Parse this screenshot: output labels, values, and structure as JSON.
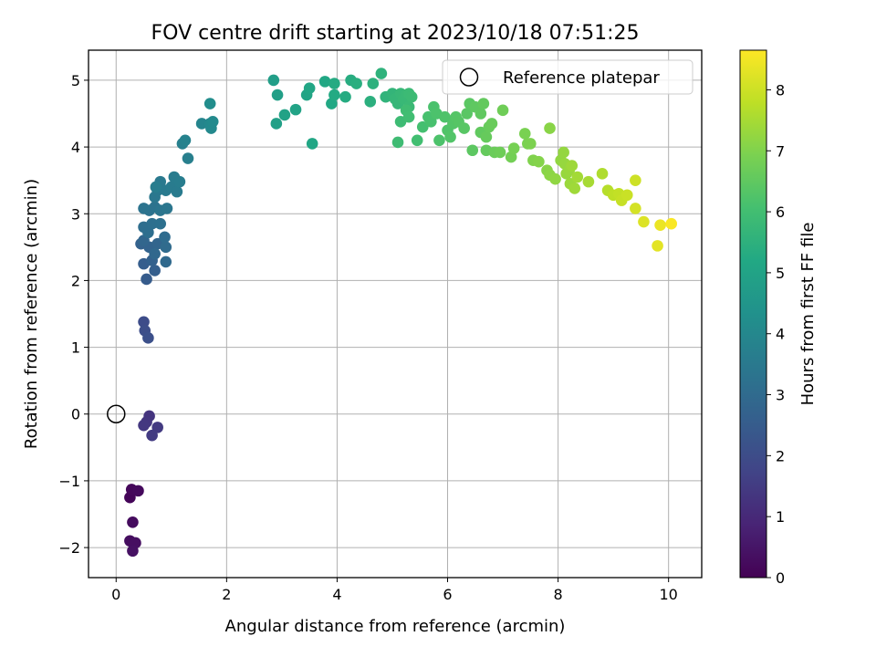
{
  "chart_data": {
    "type": "scatter",
    "title": "FOV centre drift starting at 2023/10/18 07:51:25",
    "xlabel": "Angular distance from reference (arcmin)",
    "ylabel": "Rotation from reference (arcmin)",
    "xlim": [
      -0.5,
      10.6
    ],
    "ylim": [
      -2.45,
      5.45
    ],
    "xticks": [
      0,
      2,
      4,
      6,
      8,
      10
    ],
    "yticks": [
      -2,
      -1,
      0,
      1,
      2,
      3,
      4,
      5
    ],
    "xtick_labels": [
      "0",
      "2",
      "4",
      "6",
      "8",
      "10"
    ],
    "ytick_labels": [
      "−2",
      "−1",
      "0",
      "1",
      "2",
      "3",
      "4",
      "5"
    ],
    "grid": true,
    "colormap": "viridis",
    "colorbar": {
      "label": "Hours from first FF file",
      "range": [
        0,
        8.65
      ],
      "ticks": [
        0,
        1,
        2,
        3,
        4,
        5,
        6,
        7,
        8
      ],
      "tick_labels": [
        "0",
        "1",
        "2",
        "3",
        "4",
        "5",
        "6",
        "7",
        "8"
      ]
    },
    "legend": {
      "position": "top-right",
      "entries": [
        "Reference platepar"
      ]
    },
    "reference_point": {
      "x": 0,
      "y": 0
    },
    "points": [
      {
        "x": 0.25,
        "y": -1.25,
        "c": 0.1
      },
      {
        "x": 0.28,
        "y": -1.13,
        "c": 0.15
      },
      {
        "x": 0.4,
        "y": -1.15,
        "c": 0.2
      },
      {
        "x": 0.3,
        "y": -1.62,
        "c": 0.25
      },
      {
        "x": 0.25,
        "y": -1.9,
        "c": 0.3
      },
      {
        "x": 0.35,
        "y": -1.93,
        "c": 0.35
      },
      {
        "x": 0.3,
        "y": -2.05,
        "c": 0.4
      },
      {
        "x": 0.6,
        "y": -0.03,
        "c": 1.3
      },
      {
        "x": 0.55,
        "y": -0.12,
        "c": 1.35
      },
      {
        "x": 0.5,
        "y": -0.17,
        "c": 1.4
      },
      {
        "x": 0.75,
        "y": -0.2,
        "c": 1.45
      },
      {
        "x": 0.65,
        "y": -0.32,
        "c": 1.5
      },
      {
        "x": 0.5,
        "y": 1.38,
        "c": 2.0
      },
      {
        "x": 0.52,
        "y": 1.25,
        "c": 2.05
      },
      {
        "x": 0.58,
        "y": 1.14,
        "c": 2.1
      },
      {
        "x": 0.55,
        "y": 2.02,
        "c": 2.5
      },
      {
        "x": 0.5,
        "y": 2.25,
        "c": 2.55
      },
      {
        "x": 0.7,
        "y": 2.15,
        "c": 2.6
      },
      {
        "x": 0.65,
        "y": 2.3,
        "c": 2.65
      },
      {
        "x": 0.45,
        "y": 2.55,
        "c": 2.7
      },
      {
        "x": 0.6,
        "y": 2.5,
        "c": 2.75
      },
      {
        "x": 0.75,
        "y": 2.55,
        "c": 2.8
      },
      {
        "x": 0.5,
        "y": 2.6,
        "c": 2.85
      },
      {
        "x": 0.7,
        "y": 2.4,
        "c": 2.9
      },
      {
        "x": 0.9,
        "y": 2.28,
        "c": 2.95
      },
      {
        "x": 0.9,
        "y": 2.5,
        "c": 3.0
      },
      {
        "x": 0.88,
        "y": 2.65,
        "c": 3.05
      },
      {
        "x": 0.5,
        "y": 2.8,
        "c": 3.1
      },
      {
        "x": 0.58,
        "y": 2.72,
        "c": 3.12
      },
      {
        "x": 0.65,
        "y": 2.85,
        "c": 3.15
      },
      {
        "x": 0.8,
        "y": 2.85,
        "c": 3.2
      },
      {
        "x": 0.6,
        "y": 3.05,
        "c": 3.25
      },
      {
        "x": 0.5,
        "y": 3.08,
        "c": 3.28
      },
      {
        "x": 0.7,
        "y": 3.1,
        "c": 3.3
      },
      {
        "x": 0.8,
        "y": 3.05,
        "c": 3.35
      },
      {
        "x": 0.92,
        "y": 3.08,
        "c": 3.38
      },
      {
        "x": 0.7,
        "y": 3.25,
        "c": 3.42
      },
      {
        "x": 0.75,
        "y": 3.35,
        "c": 3.45
      },
      {
        "x": 0.8,
        "y": 3.48,
        "c": 3.5
      },
      {
        "x": 0.9,
        "y": 3.35,
        "c": 3.52
      },
      {
        "x": 1.0,
        "y": 3.4,
        "c": 3.55
      },
      {
        "x": 1.1,
        "y": 3.33,
        "c": 3.58
      },
      {
        "x": 1.05,
        "y": 3.55,
        "c": 3.6
      },
      {
        "x": 1.15,
        "y": 3.48,
        "c": 3.62
      },
      {
        "x": 0.72,
        "y": 3.4,
        "c": 3.65
      },
      {
        "x": 1.3,
        "y": 3.83,
        "c": 3.7
      },
      {
        "x": 1.2,
        "y": 4.05,
        "c": 3.75
      },
      {
        "x": 1.25,
        "y": 4.1,
        "c": 3.8
      },
      {
        "x": 1.55,
        "y": 4.35,
        "c": 3.9
      },
      {
        "x": 1.7,
        "y": 4.35,
        "c": 4.0
      },
      {
        "x": 1.72,
        "y": 4.28,
        "c": 4.05
      },
      {
        "x": 1.75,
        "y": 4.38,
        "c": 4.1
      },
      {
        "x": 1.7,
        "y": 4.65,
        "c": 4.2
      },
      {
        "x": 2.85,
        "y": 5.0,
        "c": 4.8
      },
      {
        "x": 2.92,
        "y": 4.78,
        "c": 4.85
      },
      {
        "x": 2.9,
        "y": 4.35,
        "c": 4.9
      },
      {
        "x": 3.05,
        "y": 4.48,
        "c": 4.95
      },
      {
        "x": 3.25,
        "y": 4.56,
        "c": 5.0
      },
      {
        "x": 3.45,
        "y": 4.78,
        "c": 5.05
      },
      {
        "x": 3.5,
        "y": 4.88,
        "c": 5.1
      },
      {
        "x": 3.55,
        "y": 4.05,
        "c": 5.12
      },
      {
        "x": 3.78,
        "y": 4.98,
        "c": 5.15
      },
      {
        "x": 3.9,
        "y": 4.65,
        "c": 5.2
      },
      {
        "x": 3.95,
        "y": 4.78,
        "c": 5.25
      },
      {
        "x": 3.95,
        "y": 4.95,
        "c": 5.28
      },
      {
        "x": 4.15,
        "y": 4.75,
        "c": 5.3
      },
      {
        "x": 4.25,
        "y": 5.0,
        "c": 5.35
      },
      {
        "x": 4.35,
        "y": 4.95,
        "c": 5.4
      },
      {
        "x": 4.6,
        "y": 4.68,
        "c": 5.45
      },
      {
        "x": 4.65,
        "y": 4.95,
        "c": 5.5
      },
      {
        "x": 4.8,
        "y": 5.1,
        "c": 5.55
      },
      {
        "x": 4.88,
        "y": 4.75,
        "c": 5.6
      },
      {
        "x": 5.0,
        "y": 4.8,
        "c": 5.65
      },
      {
        "x": 5.05,
        "y": 4.72,
        "c": 5.7
      },
      {
        "x": 5.1,
        "y": 4.65,
        "c": 5.72
      },
      {
        "x": 5.15,
        "y": 4.8,
        "c": 5.75
      },
      {
        "x": 5.2,
        "y": 4.72,
        "c": 5.78
      },
      {
        "x": 5.25,
        "y": 4.78,
        "c": 5.8
      },
      {
        "x": 5.3,
        "y": 4.6,
        "c": 5.82
      },
      {
        "x": 5.3,
        "y": 4.8,
        "c": 5.85
      },
      {
        "x": 5.35,
        "y": 4.75,
        "c": 5.88
      },
      {
        "x": 5.15,
        "y": 4.38,
        "c": 5.9
      },
      {
        "x": 5.1,
        "y": 4.07,
        "c": 5.92
      },
      {
        "x": 5.25,
        "y": 4.55,
        "c": 5.95
      },
      {
        "x": 5.3,
        "y": 4.45,
        "c": 5.98
      },
      {
        "x": 5.45,
        "y": 4.1,
        "c": 6.0
      },
      {
        "x": 5.55,
        "y": 4.3,
        "c": 6.05
      },
      {
        "x": 5.65,
        "y": 4.45,
        "c": 6.1
      },
      {
        "x": 5.7,
        "y": 4.38,
        "c": 6.12
      },
      {
        "x": 5.75,
        "y": 4.6,
        "c": 6.15
      },
      {
        "x": 5.8,
        "y": 4.5,
        "c": 6.18
      },
      {
        "x": 5.85,
        "y": 4.1,
        "c": 6.2
      },
      {
        "x": 5.95,
        "y": 4.45,
        "c": 6.22
      },
      {
        "x": 6.0,
        "y": 4.25,
        "c": 6.25
      },
      {
        "x": 6.05,
        "y": 4.15,
        "c": 6.28
      },
      {
        "x": 6.1,
        "y": 4.35,
        "c": 6.3
      },
      {
        "x": 6.15,
        "y": 4.45,
        "c": 6.32
      },
      {
        "x": 6.2,
        "y": 4.38,
        "c": 6.35
      },
      {
        "x": 6.3,
        "y": 4.28,
        "c": 6.38
      },
      {
        "x": 6.35,
        "y": 4.5,
        "c": 6.4
      },
      {
        "x": 6.4,
        "y": 4.65,
        "c": 6.42
      },
      {
        "x": 6.45,
        "y": 3.95,
        "c": 6.45
      },
      {
        "x": 6.5,
        "y": 4.6,
        "c": 6.48
      },
      {
        "x": 6.6,
        "y": 4.5,
        "c": 6.5
      },
      {
        "x": 6.6,
        "y": 4.22,
        "c": 6.52
      },
      {
        "x": 6.65,
        "y": 4.65,
        "c": 6.55
      },
      {
        "x": 6.7,
        "y": 3.95,
        "c": 6.58
      },
      {
        "x": 6.7,
        "y": 4.15,
        "c": 6.6
      },
      {
        "x": 6.75,
        "y": 4.3,
        "c": 6.62
      },
      {
        "x": 6.8,
        "y": 4.35,
        "c": 6.65
      },
      {
        "x": 6.85,
        "y": 3.92,
        "c": 6.68
      },
      {
        "x": 6.95,
        "y": 3.92,
        "c": 6.72
      },
      {
        "x": 7.0,
        "y": 4.55,
        "c": 6.75
      },
      {
        "x": 7.15,
        "y": 3.85,
        "c": 6.8
      },
      {
        "x": 7.2,
        "y": 3.98,
        "c": 6.85
      },
      {
        "x": 7.4,
        "y": 4.2,
        "c": 6.9
      },
      {
        "x": 7.45,
        "y": 4.05,
        "c": 6.92
      },
      {
        "x": 7.5,
        "y": 4.05,
        "c": 6.95
      },
      {
        "x": 7.55,
        "y": 3.8,
        "c": 7.0
      },
      {
        "x": 7.65,
        "y": 3.78,
        "c": 7.05
      },
      {
        "x": 7.8,
        "y": 3.65,
        "c": 7.1
      },
      {
        "x": 7.85,
        "y": 4.28,
        "c": 7.12
      },
      {
        "x": 7.85,
        "y": 3.58,
        "c": 7.15
      },
      {
        "x": 7.95,
        "y": 3.52,
        "c": 7.2
      },
      {
        "x": 8.05,
        "y": 3.8,
        "c": 7.22
      },
      {
        "x": 8.1,
        "y": 3.92,
        "c": 7.25
      },
      {
        "x": 8.12,
        "y": 3.75,
        "c": 7.28
      },
      {
        "x": 8.15,
        "y": 3.6,
        "c": 7.3
      },
      {
        "x": 8.2,
        "y": 3.65,
        "c": 7.32
      },
      {
        "x": 8.22,
        "y": 3.45,
        "c": 7.35
      },
      {
        "x": 8.25,
        "y": 3.72,
        "c": 7.38
      },
      {
        "x": 8.3,
        "y": 3.38,
        "c": 7.4
      },
      {
        "x": 8.35,
        "y": 3.55,
        "c": 7.45
      },
      {
        "x": 8.55,
        "y": 3.48,
        "c": 7.5
      },
      {
        "x": 8.8,
        "y": 3.6,
        "c": 7.6
      },
      {
        "x": 8.9,
        "y": 3.35,
        "c": 7.7
      },
      {
        "x": 9.0,
        "y": 3.28,
        "c": 7.8
      },
      {
        "x": 9.1,
        "y": 3.3,
        "c": 7.85
      },
      {
        "x": 9.15,
        "y": 3.2,
        "c": 7.9
      },
      {
        "x": 9.25,
        "y": 3.28,
        "c": 7.95
      },
      {
        "x": 9.4,
        "y": 3.5,
        "c": 8.0
      },
      {
        "x": 9.4,
        "y": 3.08,
        "c": 8.1
      },
      {
        "x": 9.55,
        "y": 2.88,
        "c": 8.2
      },
      {
        "x": 9.8,
        "y": 2.52,
        "c": 8.3
      },
      {
        "x": 9.85,
        "y": 2.83,
        "c": 8.4
      },
      {
        "x": 10.05,
        "y": 2.85,
        "c": 8.6
      }
    ]
  }
}
